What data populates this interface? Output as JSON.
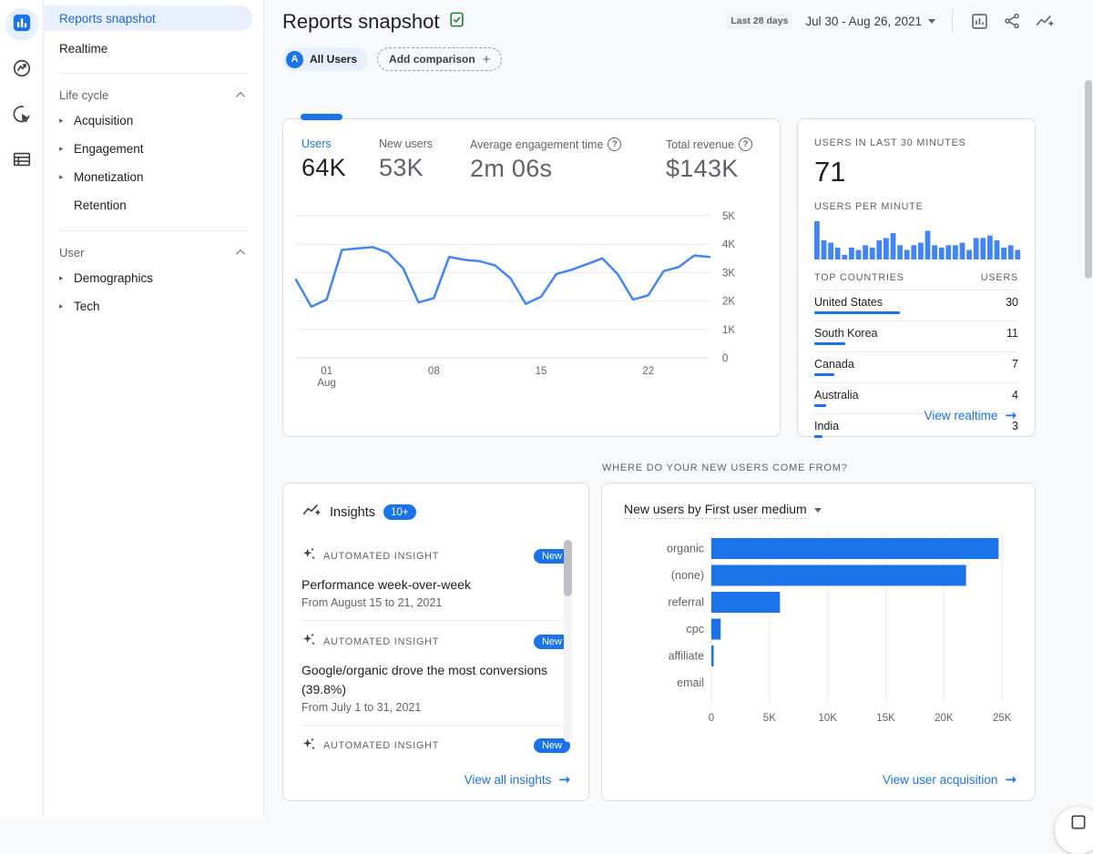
{
  "nav_rail": {
    "items": [
      {
        "name": "reports",
        "selected": true
      },
      {
        "name": "explore",
        "selected": false
      },
      {
        "name": "advertising",
        "selected": false
      },
      {
        "name": "library",
        "selected": false
      }
    ]
  },
  "sidebar": {
    "top_items": [
      {
        "label": "Reports snapshot",
        "selected": true
      },
      {
        "label": "Realtime",
        "selected": false
      }
    ],
    "sections": [
      {
        "title": "Life cycle",
        "items": [
          {
            "label": "Acquisition",
            "expandable": true
          },
          {
            "label": "Engagement",
            "expandable": true
          },
          {
            "label": "Monetization",
            "expandable": true
          },
          {
            "label": "Retention",
            "expandable": false
          }
        ]
      },
      {
        "title": "User",
        "items": [
          {
            "label": "Demographics",
            "expandable": true
          },
          {
            "label": "Tech",
            "expandable": true
          }
        ]
      }
    ]
  },
  "header": {
    "title": "Reports snapshot",
    "range_badge": "Last 28 days",
    "date_range": "Jul 30 - Aug 26, 2021"
  },
  "filters": {
    "all_users_initial": "A",
    "all_users_label": "All Users",
    "add_comparison_label": "Add comparison",
    "add_comparison_plus": "+"
  },
  "summary": {
    "metrics": [
      {
        "label": "Users",
        "value": "64K",
        "selected": true
      },
      {
        "label": "New users",
        "value": "53K",
        "selected": false
      },
      {
        "label": "Average engagement time",
        "value": "2m 06s",
        "selected": false,
        "help": true
      },
      {
        "label": "Total revenue",
        "value": "$143K",
        "selected": false,
        "help": true
      }
    ]
  },
  "realtime_card": {
    "title": "USERS IN LAST 30 MINUTES",
    "value": "71",
    "per_minute_label": "USERS PER MINUTE",
    "countries_col_left": "TOP COUNTRIES",
    "countries_col_right": "USERS",
    "countries": [
      {
        "name": "United States",
        "users": 30
      },
      {
        "name": "South Korea",
        "users": 11
      },
      {
        "name": "Canada",
        "users": 7
      },
      {
        "name": "Australia",
        "users": 4
      },
      {
        "name": "India",
        "users": 3
      }
    ],
    "link": "View realtime"
  },
  "insights_card": {
    "title": "Insights",
    "count_badge": "10+",
    "items": [
      {
        "kicker": "AUTOMATED INSIGHT",
        "badge": "New",
        "title": "Performance week-over-week",
        "subtitle": "From August 15 to 21, 2021"
      },
      {
        "kicker": "AUTOMATED INSIGHT",
        "badge": "New",
        "title": "Google/organic drove the most conversions (39.8%)",
        "subtitle": "From July 1 to 31, 2021"
      },
      {
        "kicker": "AUTOMATED INSIGHT",
        "badge": "New",
        "title": "",
        "subtitle": ""
      }
    ],
    "link": "View all insights"
  },
  "acquisition_card": {
    "section_title": "WHERE DO YOUR NEW USERS COME FROM?",
    "title": "New users by First user medium",
    "link": "View user acquisition"
  },
  "colors": {
    "link_blue": "#1a73e8",
    "line_blue": "#4285f4",
    "bar_blue": "#1a73e8",
    "grid": "#e8eaed",
    "axis_text": "#5f6368"
  },
  "chart_data": [
    {
      "type": "line",
      "title": "Users over time (Jul 30 - Aug 26, 2021)",
      "x": [
        "Jul 30",
        "Jul 31",
        "Aug 01",
        "Aug 02",
        "Aug 03",
        "Aug 04",
        "Aug 05",
        "Aug 06",
        "Aug 07",
        "Aug 08",
        "Aug 09",
        "Aug 10",
        "Aug 11",
        "Aug 12",
        "Aug 13",
        "Aug 14",
        "Aug 15",
        "Aug 16",
        "Aug 17",
        "Aug 18",
        "Aug 19",
        "Aug 20",
        "Aug 21",
        "Aug 22",
        "Aug 23",
        "Aug 24",
        "Aug 25",
        "Aug 26"
      ],
      "values": [
        2750,
        1800,
        2050,
        3800,
        3850,
        3900,
        3700,
        3150,
        1950,
        2100,
        3550,
        3450,
        3400,
        3250,
        2800,
        1900,
        2150,
        2950,
        3100,
        3300,
        3500,
        2950,
        2050,
        2200,
        3050,
        3200,
        3600,
        3550
      ],
      "ylim": [
        0,
        5000
      ],
      "yticks": [
        {
          "v": 0,
          "label": "0"
        },
        {
          "v": 1000,
          "label": "1K"
        },
        {
          "v": 2000,
          "label": "2K"
        },
        {
          "v": 3000,
          "label": "3K"
        },
        {
          "v": 4000,
          "label": "4K"
        },
        {
          "v": 5000,
          "label": "5K"
        }
      ],
      "xticks": [
        {
          "i": 2,
          "label": "01",
          "sub": "Aug"
        },
        {
          "i": 9,
          "label": "08"
        },
        {
          "i": 16,
          "label": "15"
        },
        {
          "i": 23,
          "label": "22"
        }
      ],
      "grid": "horizontal",
      "legend": "none"
    },
    {
      "type": "bar",
      "title": "Users per minute (last 30 minutes)",
      "values": [
        8,
        4,
        3.5,
        2.5,
        1,
        2.5,
        2,
        3,
        2.5,
        4,
        4.5,
        5.5,
        3,
        2,
        3,
        3.5,
        6,
        3,
        2.5,
        3,
        3,
        3.5,
        2,
        4.5,
        4.5,
        5,
        4,
        2.5,
        3,
        2
      ],
      "ymax": 8
    },
    {
      "type": "bar",
      "orientation": "horizontal",
      "title": "New users by First user medium",
      "categories": [
        "organic",
        "(none)",
        "referral",
        "cpc",
        "affiliate",
        "email"
      ],
      "values": [
        24700,
        21900,
        5900,
        800,
        200,
        30
      ],
      "xlim": [
        0,
        26000
      ],
      "xticks": [
        {
          "v": 0,
          "label": "0"
        },
        {
          "v": 5000,
          "label": "5K"
        },
        {
          "v": 10000,
          "label": "10K"
        },
        {
          "v": 15000,
          "label": "15K"
        },
        {
          "v": 20000,
          "label": "20K"
        },
        {
          "v": 25000,
          "label": "25K"
        }
      ],
      "grid": "vertical",
      "legend": "none"
    }
  ]
}
